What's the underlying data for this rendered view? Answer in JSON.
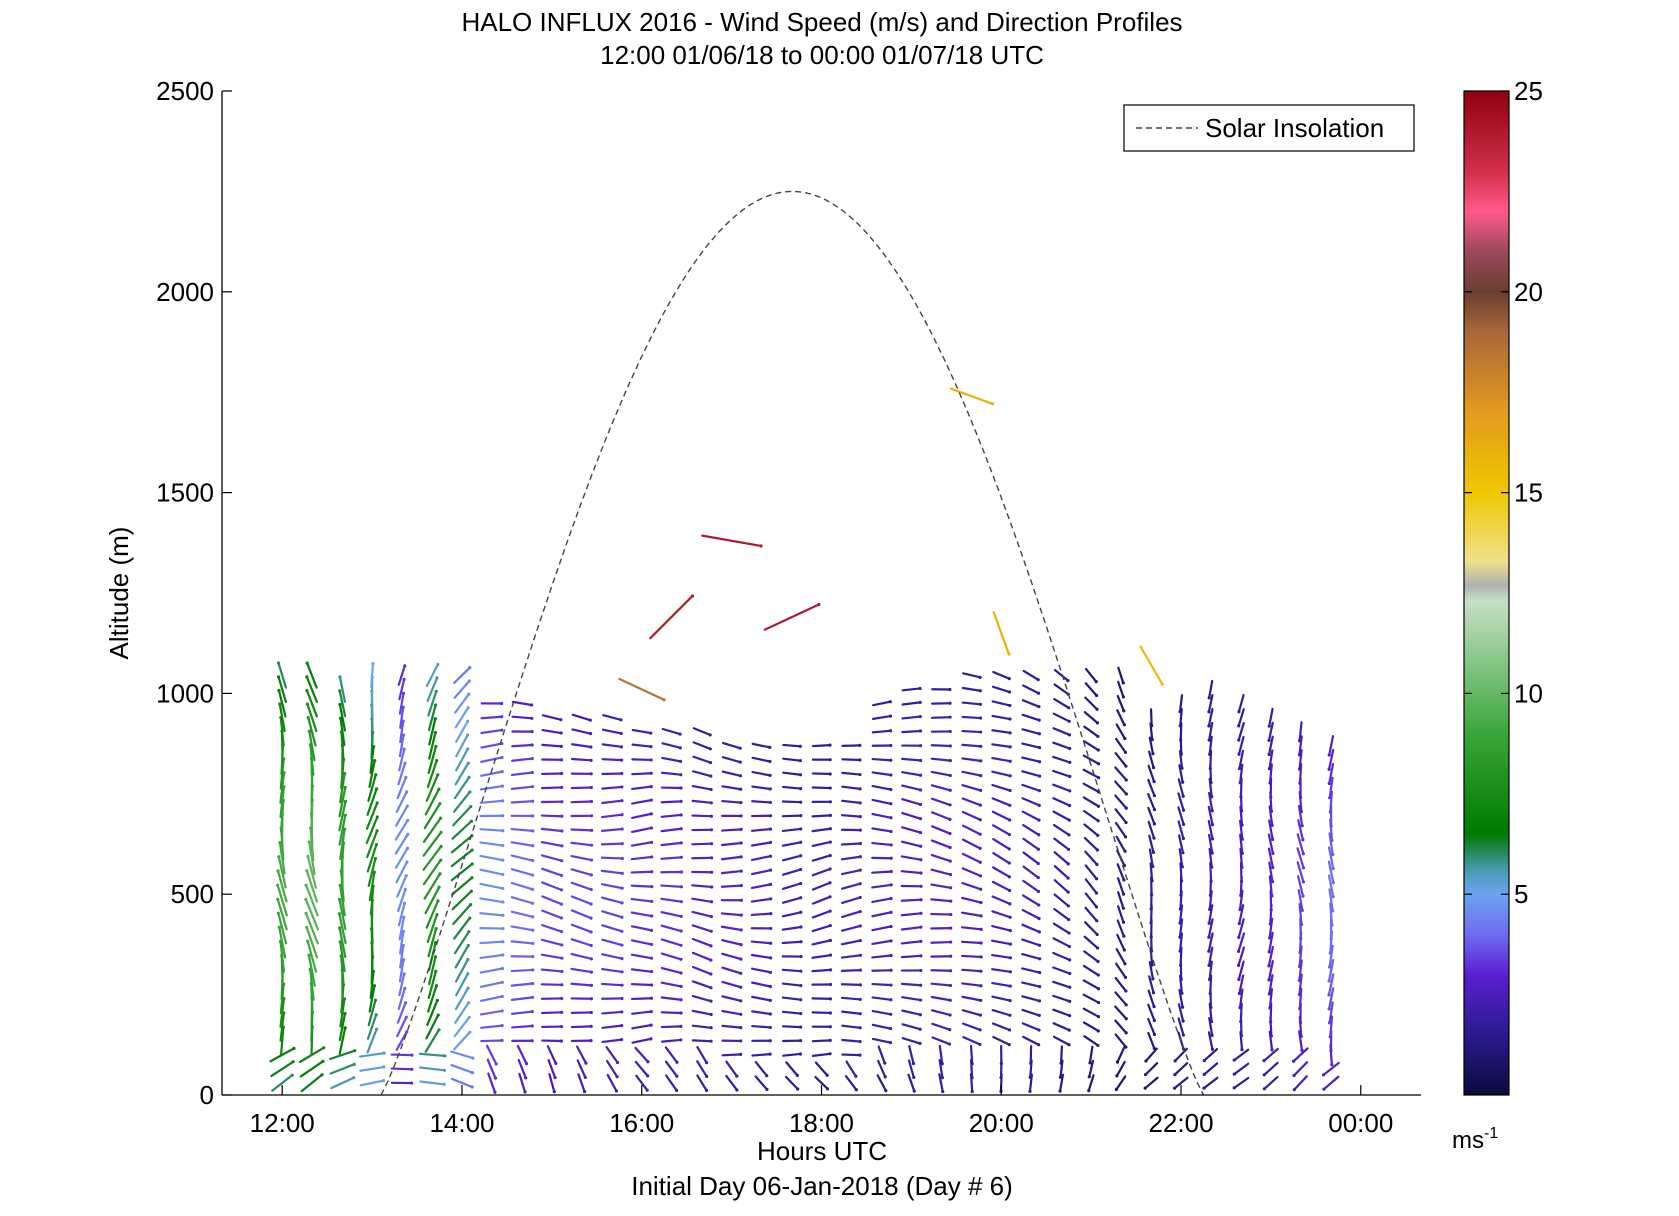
{
  "chart_data": {
    "type": "quiver",
    "title": "HALO INFLUX 2016 - Wind Speed (m/s) and Direction Profiles",
    "subtitle": "12:00 01/06/18 to 00:00 01/07/18  UTC",
    "xlabel": "Hours UTC",
    "xlabel2": "Initial Day 06-Jan-2018 (Day # 6)",
    "ylabel": "Altitude (m)",
    "xlim": [
      11.33,
      24.67
    ],
    "ylim": [
      0,
      2500
    ],
    "xticks": [
      12,
      14,
      16,
      18,
      20,
      22,
      24
    ],
    "xtick_labels": [
      "12:00",
      "14:00",
      "16:00",
      "18:00",
      "20:00",
      "22:00",
      "00:00"
    ],
    "yticks": [
      0,
      500,
      1000,
      1500,
      2000,
      2500
    ],
    "ytick_labels": [
      "0",
      "500",
      "1000",
      "1500",
      "2000",
      "2500"
    ],
    "legend": {
      "entries": [
        "Solar Insolation"
      ],
      "location": "top-right"
    },
    "colorbar": {
      "range": [
        0,
        25
      ],
      "ticks": [
        5,
        10,
        15,
        20,
        25
      ],
      "tick_labels": [
        "5",
        "10",
        "15",
        "20",
        "25"
      ],
      "unit_base": "ms",
      "unit_exp": "-1",
      "stops": [
        {
          "v": 0,
          "c": "#0a0a3a"
        },
        {
          "v": 1.5,
          "c": "#2a1b8e"
        },
        {
          "v": 3,
          "c": "#5a1fd0"
        },
        {
          "v": 4,
          "c": "#6f6cf2"
        },
        {
          "v": 5,
          "c": "#6aa4f0"
        },
        {
          "v": 5.6,
          "c": "#4a9ab0"
        },
        {
          "v": 6.5,
          "c": "#007a00"
        },
        {
          "v": 9,
          "c": "#3aa63a"
        },
        {
          "v": 12.3,
          "c": "#c6e0c6"
        },
        {
          "v": 12.7,
          "c": "#b0b0b0"
        },
        {
          "v": 13.3,
          "c": "#f0e08a"
        },
        {
          "v": 15,
          "c": "#eec800"
        },
        {
          "v": 17,
          "c": "#e49a20"
        },
        {
          "v": 19,
          "c": "#a8683a"
        },
        {
          "v": 20,
          "c": "#6a3e30"
        },
        {
          "v": 21,
          "c": "#9a4a5a"
        },
        {
          "v": 22,
          "c": "#ff5a8a"
        },
        {
          "v": 23,
          "c": "#d0304a"
        },
        {
          "v": 25,
          "c": "#900010"
        }
      ]
    },
    "solar_insolation": {
      "start_hour": 13.1,
      "end_hour": 22.25,
      "peak_hour": 17.67,
      "peak_altitude": 2250
    },
    "wind_profiles": [
      {
        "t": 12.0,
        "z0": 30,
        "z1": 1050,
        "speed": 8.0,
        "dir": 355
      },
      {
        "t": 12.33,
        "z0": 30,
        "z1": 1050,
        "speed": 8.5,
        "dir": 350
      },
      {
        "t": 12.67,
        "z0": 30,
        "z1": 1040,
        "speed": 7.5,
        "dir": 0
      },
      {
        "t": 13.0,
        "z0": 30,
        "z1": 1060,
        "speed": 6.5,
        "dir": 10
      },
      {
        "t": 13.33,
        "z0": 30,
        "z1": 1070,
        "speed": 4.0,
        "dir": 20
      },
      {
        "t": 13.67,
        "z0": 30,
        "z1": 1060,
        "speed": 7.0,
        "dir": 25
      },
      {
        "t": 14.0,
        "z0": 30,
        "z1": 1050,
        "speed": 5.5,
        "dir": 40
      },
      {
        "t": 14.33,
        "z0": 30,
        "z1": 990,
        "speed": 4.0,
        "dir": 90
      },
      {
        "t": 14.67,
        "z0": 30,
        "z1": 980,
        "speed": 3.5,
        "dir": 95
      },
      {
        "t": 15.0,
        "z0": 30,
        "z1": 960,
        "speed": 3.0,
        "dir": 100
      },
      {
        "t": 15.33,
        "z0": 30,
        "z1": 950,
        "speed": 3.0,
        "dir": 100
      },
      {
        "t": 15.67,
        "z0": 30,
        "z1": 940,
        "speed": 3.0,
        "dir": 95
      },
      {
        "t": 16.0,
        "z0": 30,
        "z1": 930,
        "speed": 2.8,
        "dir": 90
      },
      {
        "t": 16.33,
        "z0": 30,
        "z1": 920,
        "speed": 2.8,
        "dir": 95
      },
      {
        "t": 16.67,
        "z0": 30,
        "z1": 910,
        "speed": 2.5,
        "dir": 100
      },
      {
        "t": 17.0,
        "z0": 30,
        "z1": 900,
        "speed": 2.5,
        "dir": 95
      },
      {
        "t": 17.33,
        "z0": 30,
        "z1": 900,
        "speed": 2.3,
        "dir": 90
      },
      {
        "t": 17.67,
        "z0": 30,
        "z1": 890,
        "speed": 2.0,
        "dir": 85
      },
      {
        "t": 18.0,
        "z0": 30,
        "z1": 890,
        "speed": 2.0,
        "dir": 80
      },
      {
        "t": 18.33,
        "z0": 30,
        "z1": 900,
        "speed": 2.2,
        "dir": 85
      },
      {
        "t": 18.67,
        "z0": 30,
        "z1": 1000,
        "speed": 2.3,
        "dir": 90
      },
      {
        "t": 19.0,
        "z0": 30,
        "z1": 1030,
        "speed": 2.4,
        "dir": 95
      },
      {
        "t": 19.33,
        "z0": 30,
        "z1": 1030,
        "speed": 2.5,
        "dir": 100
      },
      {
        "t": 19.67,
        "z0": 30,
        "z1": 1050,
        "speed": 2.4,
        "dir": 105
      },
      {
        "t": 20.0,
        "z0": 30,
        "z1": 1060,
        "speed": 2.2,
        "dir": 110
      },
      {
        "t": 20.33,
        "z0": 30,
        "z1": 1060,
        "speed": 2.0,
        "dir": 115
      },
      {
        "t": 20.67,
        "z0": 30,
        "z1": 1070,
        "speed": 1.8,
        "dir": 120
      },
      {
        "t": 21.0,
        "z0": 30,
        "z1": 1070,
        "speed": 1.5,
        "dir": 130
      },
      {
        "t": 21.33,
        "z0": 30,
        "z1": 1050,
        "speed": 1.3,
        "dir": 150
      },
      {
        "t": 21.67,
        "z0": 30,
        "z1": 960,
        "speed": 1.5,
        "dir": 170
      },
      {
        "t": 22.0,
        "z0": 30,
        "z1": 980,
        "speed": 1.8,
        "dir": 175
      },
      {
        "t": 22.33,
        "z0": 30,
        "z1": 1030,
        "speed": 2.0,
        "dir": 180
      },
      {
        "t": 22.67,
        "z0": 30,
        "z1": 1000,
        "speed": 2.2,
        "dir": 185
      },
      {
        "t": 23.0,
        "z0": 30,
        "z1": 960,
        "speed": 2.5,
        "dir": 180
      },
      {
        "t": 23.33,
        "z0": 30,
        "z1": 920,
        "speed": 3.0,
        "dir": 175
      },
      {
        "t": 23.67,
        "z0": 30,
        "z1": 900,
        "speed": 3.5,
        "dir": 180
      }
    ],
    "isolated_vectors": [
      {
        "t": 17.0,
        "z": 1380,
        "speed": 24.0,
        "dir": 100
      },
      {
        "t": 16.33,
        "z": 1190,
        "speed": 24.0,
        "dir": 45
      },
      {
        "t": 17.67,
        "z": 1190,
        "speed": 24.0,
        "dir": 65
      },
      {
        "t": 16.0,
        "z": 1010,
        "speed": 18.5,
        "dir": 115
      },
      {
        "t": 19.67,
        "z": 1740,
        "speed": 16.0,
        "dir": 110
      },
      {
        "t": 20.0,
        "z": 1150,
        "speed": 16.0,
        "dir": 160
      },
      {
        "t": 21.67,
        "z": 1070,
        "speed": 15.5,
        "dir": 150
      }
    ]
  }
}
